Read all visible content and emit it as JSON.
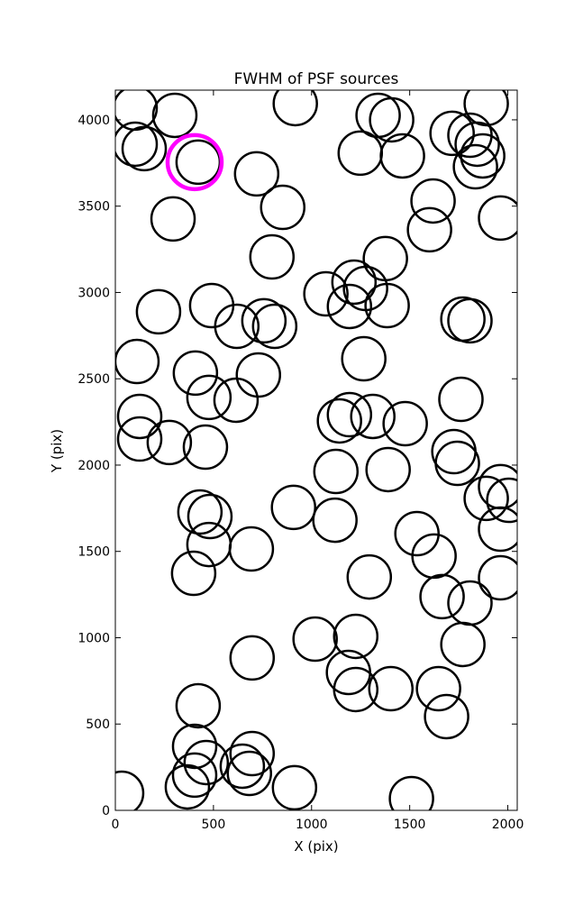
{
  "chart_data": {
    "type": "scatter",
    "title": "FWHM of PSF sources",
    "xlabel": "X (pix)",
    "ylabel": "Y (pix)",
    "xlim": [
      0,
      2048
    ],
    "ylim": [
      0,
      4172
    ],
    "xticks": [
      0,
      500,
      1000,
      1500,
      2000
    ],
    "yticks": [
      0,
      500,
      1000,
      1500,
      2000,
      2500,
      3000,
      3500,
      4000
    ],
    "series": [
      {
        "color": "#000000",
        "x": [
          101,
          303,
          101,
          147,
          422,
          720,
          853,
          294,
          917,
          1339,
          1408,
          1248,
          1463,
          1890,
          1716,
          1807,
          1844,
          1872,
          1835,
          1619,
          1601,
          1963,
          798,
          1376,
          1073,
          1216,
          1275,
          1193,
          1385,
          220,
          491,
          619,
          757,
          812,
          1771,
          1807,
          110,
          1266,
          408,
          729,
          477,
          615,
          1761,
          124,
          1142,
          1193,
          1312,
          1477,
          124,
          275,
          459,
          1725,
          1743,
          1124,
          1390,
          1963,
          1890,
          2005,
          431,
          482,
          908,
          1119,
          1963,
          1537,
          477,
          693,
          1624,
          399,
          1294,
          1963,
          1665,
          1807,
          1018,
          1225,
          1771,
          697,
          1188,
          1225,
          1404,
          1647,
          1688,
          422,
          404,
          463,
          697,
          647,
          683,
          404,
          367,
          913,
          32,
          1509
        ],
        "values": [
          4068,
          4026,
          3859,
          3833,
          3755,
          3687,
          3493,
          3426,
          4094,
          4026,
          4000,
          3807,
          3791,
          4094,
          3922,
          3911,
          3859,
          3791,
          3728,
          3530,
          3363,
          3431,
          3206,
          3196,
          2992,
          3060,
          3023,
          2919,
          2924,
          2888,
          2924,
          2804,
          2836,
          2804,
          2846,
          2836,
          2600,
          2616,
          2533,
          2522,
          2392,
          2376,
          2381,
          2282,
          2256,
          2292,
          2282,
          2240,
          2151,
          2131,
          2104,
          2078,
          2010,
          1963,
          1974,
          1875,
          1807,
          1796,
          1728,
          1702,
          1755,
          1681,
          1629,
          1603,
          1540,
          1514,
          1473,
          1373,
          1352,
          1347,
          1238,
          1201,
          992,
          1008,
          961,
          883,
          799,
          700,
          705,
          705,
          543,
          606,
          371,
          277,
          329,
          256,
          214,
          204,
          136,
          131,
          99,
          68
        ]
      },
      {
        "color": "#ff00ff",
        "x": [
          404
        ],
        "values": [
          3755
        ]
      }
    ]
  }
}
